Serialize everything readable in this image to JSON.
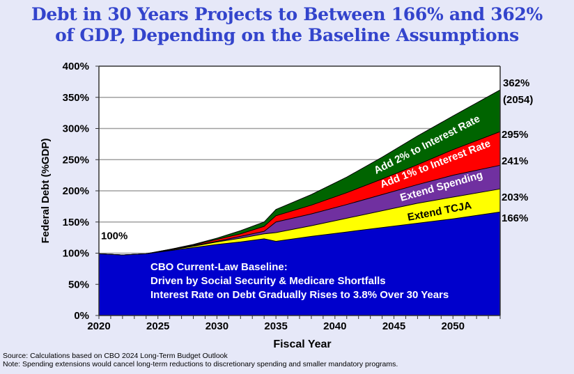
{
  "title": {
    "line1": "Debt in 30 Years Projects to Between 166% and 362%",
    "line2": "of GDP, Depending on the Baseline Assumptions"
  },
  "footnotes": {
    "source": "Source: Calculations based on CBO 2024 Long-Term Budget Outlook",
    "note": "Note: Spending extensions would cancel long-term reductions to discretionary spending and smaller mandatory programs."
  },
  "chart_data": {
    "type": "area",
    "stacked": true,
    "title": "Debt in 30 Years Projects to Between 166% and 362% of GDP, Depending on the Baseline Assumptions",
    "xlabel": "Fiscal Year",
    "ylabel": "Federal Debt (%GDP)",
    "xlim": [
      2020,
      2054
    ],
    "ylim": [
      0,
      400
    ],
    "grid": true,
    "x_ticks": [
      2020,
      2025,
      2030,
      2035,
      2040,
      2045,
      2050
    ],
    "x_tick_labels": [
      "2020",
      "2025",
      "2030",
      "2035",
      "2040",
      "2045",
      "2050"
    ],
    "y_ticks": [
      0,
      50,
      100,
      150,
      200,
      250,
      300,
      350,
      400
    ],
    "y_tick_labels": [
      "0%",
      "50%",
      "100%",
      "150%",
      "200%",
      "250%",
      "300%",
      "350%",
      "400%"
    ],
    "x": [
      2020,
      2022,
      2024,
      2026,
      2028,
      2030,
      2032,
      2034,
      2035,
      2038,
      2041,
      2044,
      2047,
      2050,
      2054
    ],
    "series": [
      {
        "name": "CBO Current-Law Baseline",
        "color": "#0000cc",
        "cumulative_values": [
          99,
          97,
          99,
          104,
          109,
          114,
          118,
          123,
          119,
          127,
          134,
          141,
          148,
          155,
          166
        ]
      },
      {
        "name": "Extend TCJA",
        "color": "#ffff00",
        "cumulative_values": [
          99,
          97,
          99,
          105,
          111,
          118,
          124,
          131,
          133,
          144,
          156,
          168,
          180,
          190,
          203
        ]
      },
      {
        "name": "Extend Spending",
        "color": "#7030a0",
        "cumulative_values": [
          99,
          97,
          99,
          105,
          112,
          119,
          127,
          135,
          150,
          163,
          178,
          194,
          210,
          225,
          241
        ]
      },
      {
        "name": "Add 1% to Interest Rate",
        "color": "#ff0000",
        "cumulative_values": [
          99,
          97,
          99,
          106,
          113,
          122,
          131,
          143,
          160,
          177,
          197,
          219,
          242,
          266,
          295
        ]
      },
      {
        "name": "Add 2% to Interest Rate",
        "color": "#006400",
        "cumulative_values": [
          99,
          97,
          99,
          106,
          114,
          124,
          136,
          150,
          170,
          194,
          222,
          254,
          288,
          320,
          362
        ]
      }
    ],
    "annotations": {
      "start_value": "100%",
      "end_labels": [
        "362%",
        "(2054)",
        "295%",
        "241%",
        "203%",
        "166%"
      ],
      "band_labels": [
        "Add 2% to Interest Rate",
        "Add 1% to Interest Rate",
        "Extend Spending",
        "Extend TCJA"
      ],
      "baseline_text": [
        "CBO Current-Law Baseline:",
        "Driven by Social Security & Medicare Shortfalls",
        "Interest Rate on Debt Gradually Rises to 3.8% Over 30 Years"
      ]
    }
  }
}
